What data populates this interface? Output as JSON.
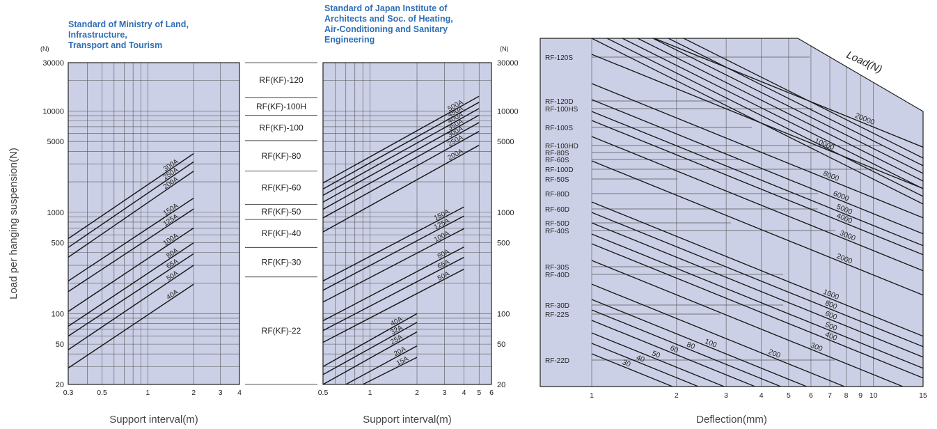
{
  "chart_data": [
    {
      "type": "line",
      "title": "Standard of Ministry of Land,\nInfrastructure,\nTransport and Tourism",
      "unit_label": "(N)",
      "ylabel": "Load per hanging suspension(N)",
      "xlabel": "Support interval(m)",
      "x_scale": "log",
      "y_scale": "log",
      "xlim": [
        0.3,
        4
      ],
      "ylim": [
        20,
        30000
      ],
      "x_ticks": [
        {
          "v": 0.3,
          "t": "0.3"
        },
        {
          "v": 0.5,
          "t": "0.5"
        },
        {
          "v": 1,
          "t": "1"
        },
        {
          "v": 2,
          "t": "2"
        },
        {
          "v": 3,
          "t": "3"
        },
        {
          "v": 4,
          "t": "4"
        }
      ],
      "y_ticks": [
        {
          "v": 30000,
          "t": "30000"
        },
        {
          "v": 10000,
          "t": "10000"
        },
        {
          "v": 5000,
          "t": "5000"
        },
        {
          "v": 1000,
          "t": "1000"
        },
        {
          "v": 500,
          "t": "500"
        },
        {
          "v": 100,
          "t": "100"
        },
        {
          "v": 50,
          "t": "50"
        },
        {
          "v": 20,
          "t": "20"
        }
      ],
      "grid": true,
      "series": [
        {
          "name": "300A",
          "x": [
            0.3,
            2
          ],
          "y": [
            550,
            3800
          ]
        },
        {
          "name": "250A",
          "x": [
            0.3,
            2
          ],
          "y": [
            450,
            3150
          ]
        },
        {
          "name": "200A",
          "x": [
            0.3,
            2
          ],
          "y": [
            360,
            2550
          ]
        },
        {
          "name": "150A",
          "x": [
            0.3,
            2
          ],
          "y": [
            210,
            1380
          ]
        },
        {
          "name": "125A",
          "x": [
            0.3,
            2
          ],
          "y": [
            165,
            1080
          ]
        },
        {
          "name": "100A",
          "x": [
            0.3,
            2
          ],
          "y": [
            105,
            700
          ]
        },
        {
          "name": "80A",
          "x": [
            0.3,
            2
          ],
          "y": [
            75,
            500
          ]
        },
        {
          "name": "65A",
          "x": [
            0.3,
            2
          ],
          "y": [
            60,
            390
          ]
        },
        {
          "name": "50A",
          "x": [
            0.3,
            2
          ],
          "y": [
            44,
            300
          ]
        },
        {
          "name": "40A",
          "x": [
            0.3,
            2
          ],
          "y": [
            29,
            195
          ]
        }
      ]
    },
    {
      "type": "line",
      "title": "Standard of Japan Institute of\nArchitects and Soc. of Heating,\nAir-Conditioning and Sanitary\nEngineering",
      "unit_label": "(N)",
      "xlabel": "Support interval(m)",
      "x_scale": "log",
      "y_scale": "log",
      "xlim": [
        0.5,
        6
      ],
      "ylim": [
        20,
        30000
      ],
      "x_ticks": [
        {
          "v": 0.5,
          "t": "0.5"
        },
        {
          "v": 1,
          "t": "1"
        },
        {
          "v": 2,
          "t": "2"
        },
        {
          "v": 3,
          "t": "3"
        },
        {
          "v": 4,
          "t": "4"
        },
        {
          "v": 5,
          "t": "5"
        },
        {
          "v": 6,
          "t": "6"
        }
      ],
      "y_ticks": [
        {
          "v": 30000,
          "t": "30000"
        },
        {
          "v": 10000,
          "t": "10000"
        },
        {
          "v": 5000,
          "t": "5000"
        },
        {
          "v": 1000,
          "t": "1000"
        },
        {
          "v": 500,
          "t": "500"
        },
        {
          "v": 100,
          "t": "100"
        },
        {
          "v": 50,
          "t": "50"
        },
        {
          "v": 20,
          "t": "20"
        }
      ],
      "grid": true,
      "series": [
        {
          "name": "500A",
          "x": [
            0.5,
            5
          ],
          "y": [
            1950,
            14000
          ]
        },
        {
          "name": "450A",
          "x": [
            0.5,
            5
          ],
          "y": [
            1700,
            12200
          ]
        },
        {
          "name": "400A",
          "x": [
            0.5,
            5
          ],
          "y": [
            1470,
            10600
          ]
        },
        {
          "name": "350A",
          "x": [
            0.5,
            5
          ],
          "y": [
            1260,
            9100
          ]
        },
        {
          "name": "300A",
          "x": [
            0.5,
            5
          ],
          "y": [
            1070,
            7700
          ]
        },
        {
          "name": "250A",
          "x": [
            0.5,
            5
          ],
          "y": [
            880,
            6300
          ]
        },
        {
          "name": "200A",
          "x": [
            0.5,
            5
          ],
          "y": [
            640,
            4600
          ]
        },
        {
          "name": "150A",
          "x": [
            0.5,
            4
          ],
          "y": [
            210,
            1130
          ]
        },
        {
          "name": "125A",
          "x": [
            0.5,
            4
          ],
          "y": [
            170,
            920
          ]
        },
        {
          "name": "100A",
          "x": [
            0.5,
            4
          ],
          "y": [
            130,
            690
          ]
        },
        {
          "name": "80A",
          "x": [
            0.5,
            4
          ],
          "y": [
            85,
            455
          ]
        },
        {
          "name": "65A",
          "x": [
            0.5,
            4
          ],
          "y": [
            68,
            360
          ]
        },
        {
          "name": "50A",
          "x": [
            0.5,
            4
          ],
          "y": [
            52,
            275
          ]
        },
        {
          "name": "40A",
          "x": [
            0.5,
            2
          ],
          "y": [
            30,
            100
          ]
        },
        {
          "name": "32A",
          "x": [
            0.5,
            2
          ],
          "y": [
            25,
            82
          ]
        },
        {
          "name": "25A",
          "x": [
            0.5,
            2
          ],
          "y": [
            20,
            66
          ]
        },
        {
          "name": "20A",
          "x": [
            0.7,
            2
          ],
          "y": [
            20,
            48
          ]
        },
        {
          "name": "15A",
          "x": [
            0.9,
            2
          ],
          "y": [
            20,
            37
          ]
        }
      ]
    },
    {
      "type": "table",
      "rows": [
        {
          "label": "RF(KF)-120",
          "range": [
            13500,
            30000
          ]
        },
        {
          "label": "RF(KF)-100H",
          "range": [
            9100,
            13500
          ]
        },
        {
          "label": "RF(KF)-100",
          "range": [
            5100,
            9100
          ]
        },
        {
          "label": "RF(KF)-80",
          "range": [
            2550,
            5100
          ]
        },
        {
          "label": "RF(KF)-60",
          "range": [
            1200,
            2550
          ]
        },
        {
          "label": "RF(KF)-50",
          "range": [
            850,
            1200
          ]
        },
        {
          "label": "RF(KF)-40",
          "range": [
            450,
            850
          ]
        },
        {
          "label": "RF(KF)-30",
          "range": [
            230,
            450
          ]
        },
        {
          "label": "RF(KF)-22",
          "range": [
            20,
            230
          ]
        }
      ]
    },
    {
      "type": "line",
      "xlabel": "Deflection(mm)",
      "series_title": "Load(N)",
      "x_scale": "log",
      "xlim": [
        0.7,
        15
      ],
      "x_ticks": [
        {
          "v": 1,
          "t": "1"
        },
        {
          "v": 2,
          "t": "2"
        },
        {
          "v": 3,
          "t": "3"
        },
        {
          "v": 4,
          "t": "4"
        },
        {
          "v": 5,
          "t": "5"
        },
        {
          "v": 6,
          "t": "6"
        },
        {
          "v": 7,
          "t": "7"
        },
        {
          "v": 8,
          "t": "8"
        },
        {
          "v": 9,
          "t": "9"
        },
        {
          "v": 10,
          "t": "10"
        },
        {
          "v": 15,
          "t": "15"
        }
      ],
      "models": [
        "RF-120S",
        "RF-120D",
        "RF-100HS",
        "RF-100S",
        "RF-100HD",
        "RF-80S",
        "RF-60S",
        "RF-100D",
        "RF-50S",
        "RF-80D",
        "RF-60D",
        "RF-50D",
        "RF-40S",
        "RF-30S",
        "RF-40D",
        "RF-30D",
        "RF-22S",
        "RF-22D"
      ],
      "load_lines": [
        "20000",
        "10000",
        "8000",
        "6000",
        "5000",
        "4000",
        "3000",
        "2000",
        "1000",
        "800",
        "600",
        "500",
        "400",
        "300",
        "200",
        "100",
        "80",
        "60",
        "50",
        "40",
        "30"
      ],
      "grid": true
    }
  ]
}
